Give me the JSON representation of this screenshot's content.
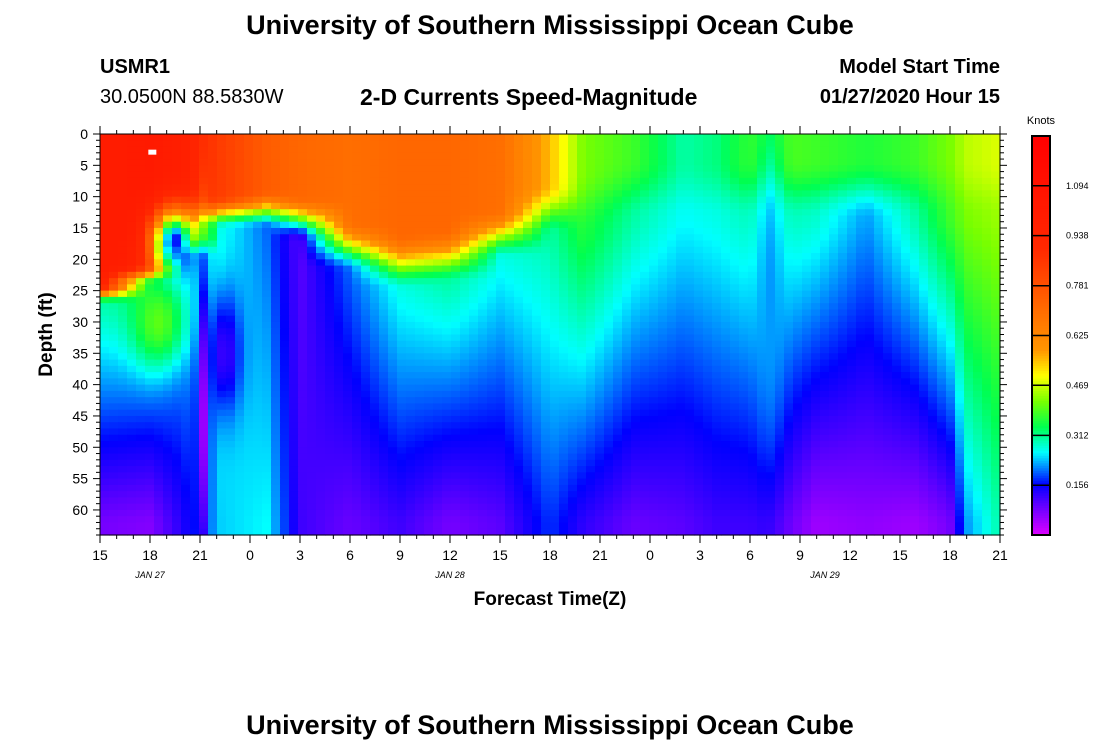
{
  "header": {
    "title_top": "University of Southern Mississippi Ocean Cube",
    "title_bottom": "University of Southern Mississippi Ocean Cube",
    "station": "USMR1",
    "location": "30.0500N 88.5830W",
    "subtitle": "2-D Currents Speed-Magnitude",
    "model_label": "Model Start Time",
    "model_time": "01/27/2020 Hour 15"
  },
  "chart_data": {
    "type": "heatmap",
    "title": "2-D Currents Speed-Magnitude",
    "xlabel": "Forecast Time(Z)",
    "ylabel": "Depth (ft)",
    "x_ticks": [
      "15",
      "18",
      "21",
      "0",
      "3",
      "6",
      "9",
      "12",
      "15",
      "18",
      "21",
      "0",
      "3",
      "6",
      "9",
      "12",
      "15",
      "18",
      "21"
    ],
    "x_range_hours": [
      0,
      54
    ],
    "day_labels": [
      {
        "text": "JAN 27",
        "hour": 3
      },
      {
        "text": "JAN 28",
        "hour": 21
      },
      {
        "text": "JAN 29",
        "hour": 43.5
      }
    ],
    "y_ticks": [
      0,
      5,
      10,
      15,
      20,
      25,
      30,
      35,
      40,
      45,
      50,
      55,
      60
    ],
    "y_range": [
      0,
      64
    ],
    "colorbar": {
      "unit": "Knots",
      "range": [
        0,
        1.25
      ],
      "labels": [
        "1.094",
        "0.938",
        "0.781",
        "0.625",
        "0.469",
        "0.312",
        "0.156"
      ],
      "label_values": [
        1.094,
        0.938,
        0.781,
        0.625,
        0.469,
        0.312,
        0.156
      ]
    },
    "columns": [
      {
        "hour": 0,
        "surface": 1.0,
        "mld": 24,
        "thick": 3,
        "mid": 0.3,
        "deep": 0.08
      },
      {
        "hour": 3,
        "surface": 1.02,
        "mld": 21,
        "thick": 3,
        "mid": 0.32,
        "deep": 0.07
      },
      {
        "hour": 5,
        "surface": 0.98,
        "mld": 16,
        "thick": 4,
        "mid": 0.25,
        "deep": 0.14
      },
      {
        "hour": 7,
        "surface": 0.85,
        "mld": 10,
        "thick": 5,
        "mid": 0.28,
        "deep": 0.24
      },
      {
        "hour": 10,
        "surface": 0.75,
        "mld": 9,
        "thick": 6,
        "mid": 0.2,
        "deep": 0.26
      },
      {
        "hour": 12,
        "surface": 0.72,
        "mld": 10,
        "thick": 7,
        "mid": 0.1,
        "deep": 0.12
      },
      {
        "hour": 15,
        "surface": 0.7,
        "mld": 14,
        "thick": 8,
        "mid": 0.2,
        "deep": 0.09
      },
      {
        "hour": 18,
        "surface": 0.72,
        "mld": 16,
        "thick": 9,
        "mid": 0.27,
        "deep": 0.12
      },
      {
        "hour": 21,
        "surface": 0.72,
        "mld": 15,
        "thick": 9,
        "mid": 0.3,
        "deep": 0.08
      },
      {
        "hour": 24,
        "surface": 0.7,
        "mld": 12,
        "thick": 8,
        "mid": 0.27,
        "deep": 0.1
      },
      {
        "hour": 27,
        "surface": 0.55,
        "mld": 8,
        "thick": 8,
        "mid": 0.3,
        "deep": 0.18
      },
      {
        "hour": 29,
        "surface": 0.42,
        "mld": 6,
        "thick": 10,
        "mid": 0.36,
        "deep": 0.13
      },
      {
        "hour": 32,
        "surface": 0.38,
        "mld": 4,
        "thick": 10,
        "mid": 0.3,
        "deep": 0.09
      },
      {
        "hour": 35,
        "surface": 0.3,
        "mld": 4,
        "thick": 10,
        "mid": 0.26,
        "deep": 0.1
      },
      {
        "hour": 37,
        "surface": 0.32,
        "mld": 4,
        "thick": 10,
        "mid": 0.27,
        "deep": 0.12
      },
      {
        "hour": 40,
        "surface": 0.4,
        "mld": 4,
        "thick": 10,
        "mid": 0.3,
        "deep": 0.12
      },
      {
        "hour": 43,
        "surface": 0.38,
        "mld": 4,
        "thick": 10,
        "mid": 0.28,
        "deep": 0.05
      },
      {
        "hour": 46,
        "surface": 0.36,
        "mld": 4,
        "thick": 10,
        "mid": 0.22,
        "deep": 0.06
      },
      {
        "hour": 49,
        "surface": 0.38,
        "mld": 4,
        "thick": 10,
        "mid": 0.3,
        "deep": 0.05
      },
      {
        "hour": 51,
        "surface": 0.42,
        "mld": 4,
        "thick": 10,
        "mid": 0.38,
        "deep": 0.08
      },
      {
        "hour": 52,
        "surface": 0.46,
        "mld": 4,
        "thick": 10,
        "mid": 0.42,
        "deep": 0.22
      },
      {
        "hour": 54,
        "surface": 0.48,
        "mld": 4,
        "thick": 10,
        "mid": 0.44,
        "deep": 0.3
      }
    ],
    "features": [
      {
        "name": "green-core",
        "hour": 3.5,
        "depth": 30,
        "value": 0.4,
        "rh": 1.6,
        "rd": 7
      },
      {
        "name": "blue-lens",
        "hour": 4.5,
        "depth": 17,
        "value": 0.16,
        "rh": 1.4,
        "rd": 5
      },
      {
        "name": "shear-line",
        "hour": 6.2,
        "depth": 45,
        "value": 0.05,
        "rh": 0.4,
        "rd": 22
      },
      {
        "name": "deep-pocket",
        "hour": 7.5,
        "depth": 35,
        "value": 0.12,
        "rh": 1.0,
        "rd": 10
      },
      {
        "name": "jet-cyan",
        "hour": 40.2,
        "depth": 25,
        "value": 0.22,
        "rh": 0.8,
        "rd": 24
      }
    ]
  }
}
